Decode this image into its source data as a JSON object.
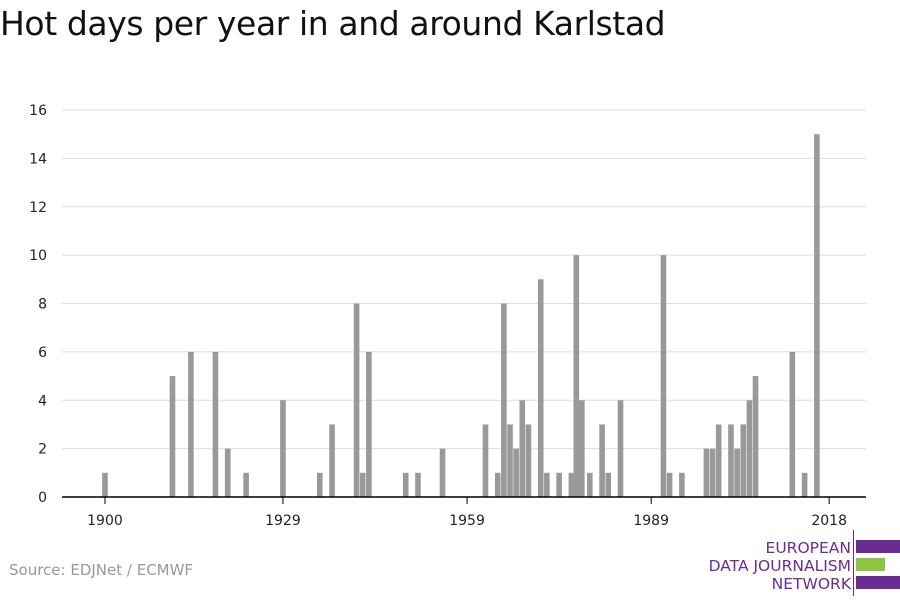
{
  "title": "Hot days per year in and around Karlstad",
  "source": "Source: EDJNet / ECMWF",
  "logo": {
    "lines": [
      "EUROPEAN",
      "DATA JOURNALISM",
      "NETWORK"
    ],
    "colors": {
      "purple": "#6b2c91",
      "green": "#8cc63f"
    }
  },
  "colors": {
    "bar": "#999999",
    "grid": "#dddddd",
    "axis": "#000000"
  },
  "chart_data": {
    "type": "bar",
    "title": "Hot days per year in and around Karlstad",
    "xlabel": "",
    "ylabel": "",
    "xlim": [
      1893,
      2024
    ],
    "ylim": [
      0,
      16
    ],
    "yticks": [
      0,
      2,
      4,
      6,
      8,
      10,
      12,
      14,
      16
    ],
    "xticks": [
      1900,
      1929,
      1959,
      1989,
      2018
    ],
    "grid": true,
    "x": [
      1900,
      1911,
      1914,
      1918,
      1920,
      1923,
      1929,
      1935,
      1937,
      1941,
      1942,
      1943,
      1949,
      1951,
      1955,
      1962,
      1964,
      1965,
      1966,
      1967,
      1968,
      1969,
      1971,
      1972,
      1974,
      1976,
      1976.8,
      1977.7,
      1979,
      1981,
      1982,
      1984,
      1991,
      1992,
      1994,
      1998,
      1999,
      2000,
      2002,
      2003,
      2004,
      2005,
      2006,
      2012,
      2014,
      2016
    ],
    "values": [
      1,
      5,
      6,
      6,
      2,
      1,
      4,
      1,
      3,
      8,
      1,
      6,
      1,
      1,
      2,
      3,
      1,
      8,
      3,
      2,
      4,
      3,
      9,
      1,
      1,
      1,
      10,
      4,
      1,
      3,
      1,
      4,
      10,
      1,
      1,
      2,
      2,
      3,
      3,
      2,
      3,
      4,
      5,
      6,
      1,
      15
    ]
  }
}
